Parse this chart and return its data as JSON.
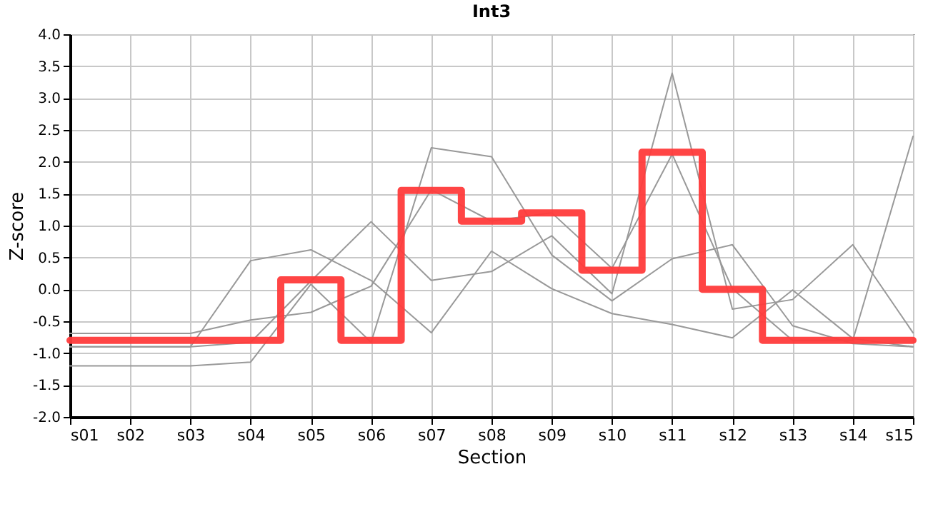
{
  "chart_data": {
    "type": "line",
    "title": "Int3",
    "xlabel": "Section",
    "ylabel": "Z-score",
    "categories": [
      "s01",
      "s02",
      "s03",
      "s04",
      "s05",
      "s06",
      "s07",
      "s08",
      "s09",
      "s10",
      "s11",
      "s12",
      "s13",
      "s14",
      "s15"
    ],
    "series": [
      {
        "color": "#999999",
        "values": [
          -0.9,
          -0.9,
          -0.9,
          0.45,
          0.62,
          0.14,
          -0.68,
          0.6,
          0.01,
          -0.38,
          -0.55,
          -0.76,
          -0.01,
          -0.77,
          -0.9
        ]
      },
      {
        "color": "#999999",
        "values": [
          -0.69,
          -0.69,
          -0.69,
          -0.48,
          -0.36,
          0.05,
          1.56,
          1.07,
          1.2,
          0.33,
          2.12,
          0.01,
          -0.8,
          -0.8,
          2.4
        ]
      },
      {
        "color": "#999999",
        "values": [
          -0.9,
          -0.9,
          -0.9,
          -0.83,
          0.13,
          1.06,
          0.14,
          0.28,
          0.84,
          -0.07,
          3.39,
          -0.31,
          -0.16,
          0.7,
          -0.68
        ]
      },
      {
        "color": "#999999",
        "values": [
          -1.2,
          -1.2,
          -1.2,
          -1.14,
          0.08,
          -0.83,
          2.22,
          2.08,
          0.54,
          -0.18,
          0.48,
          0.7,
          -0.57,
          -0.85,
          -0.9
        ]
      },
      {
        "type": "step",
        "color": "#ff3b3b",
        "values": [
          -0.8,
          -0.8,
          -0.8,
          -0.8,
          0.15,
          -0.8,
          1.55,
          1.07,
          1.2,
          0.3,
          2.15,
          0.0,
          -0.8,
          -0.8,
          -0.8
        ]
      }
    ],
    "ylim": [
      -2.0,
      4.0
    ],
    "yticks": [
      {
        "value": -2,
        "label": "-2.0"
      },
      {
        "value": -1.5,
        "label": "-1.5"
      },
      {
        "value": -1,
        "label": "-1.0"
      },
      {
        "value": -0.5,
        "label": "-0.5"
      },
      {
        "value": 0,
        "label": "0.0"
      },
      {
        "value": 0.5,
        "label": "0.5"
      },
      {
        "value": 1,
        "label": "1.0"
      },
      {
        "value": 1.5,
        "label": "1.5"
      },
      {
        "value": 2,
        "label": "2.0"
      },
      {
        "value": 2.5,
        "label": "2.5"
      },
      {
        "value": 3,
        "label": "3.0"
      },
      {
        "value": 3.5,
        "label": "3.5"
      },
      {
        "value": 4,
        "label": "4.0"
      }
    ],
    "grid": true
  }
}
